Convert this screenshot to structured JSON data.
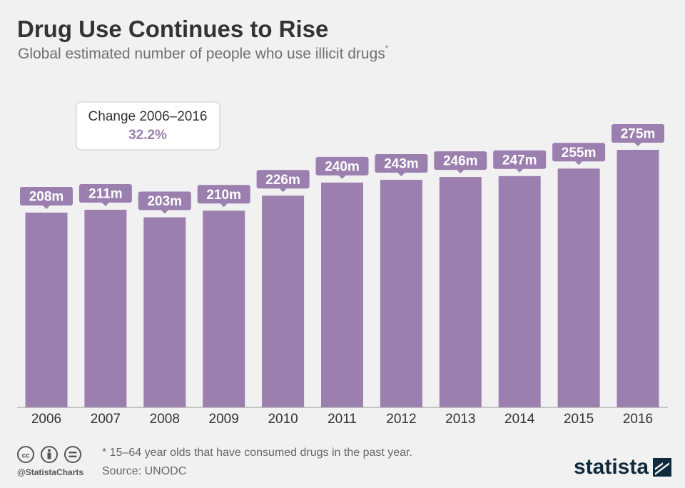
{
  "header": {
    "title": "Drug Use Continues to Rise",
    "subtitle": "Global estimated number of people who use illicit drugs",
    "subtitle_marker": "*"
  },
  "callout": {
    "label": "Change 2006–2016",
    "value": "32.2%"
  },
  "colors": {
    "bar": "#9b7fae",
    "label_box": "#9b7fae",
    "label_text": "#ffffff",
    "callout_value": "#9b7fae",
    "background": "#f1f1f1",
    "axis": "#999999"
  },
  "chart_data": {
    "type": "bar",
    "title": "Drug Use Continues to Rise",
    "subtitle": "Global estimated number of people who use illicit drugs*",
    "xlabel": "",
    "ylabel": "",
    "unit": "m",
    "categories": [
      "2006",
      "2007",
      "2008",
      "2009",
      "2010",
      "2011",
      "2012",
      "2013",
      "2014",
      "2015",
      "2016"
    ],
    "values": [
      208,
      211,
      203,
      210,
      226,
      240,
      243,
      246,
      247,
      255,
      275
    ],
    "value_labels": [
      "208m",
      "211m",
      "203m",
      "210m",
      "226m",
      "240m",
      "243m",
      "246m",
      "247m",
      "255m",
      "275m"
    ],
    "ylim": [
      0,
      275
    ],
    "grid": false,
    "annotations": [
      "Change 2006–2016 32.2%"
    ]
  },
  "footer": {
    "note": "* 15–64 year olds that have consumed drugs in the past year.",
    "source": "Source: UNODC",
    "handle": "@StatistaCharts",
    "brand": "statista"
  }
}
